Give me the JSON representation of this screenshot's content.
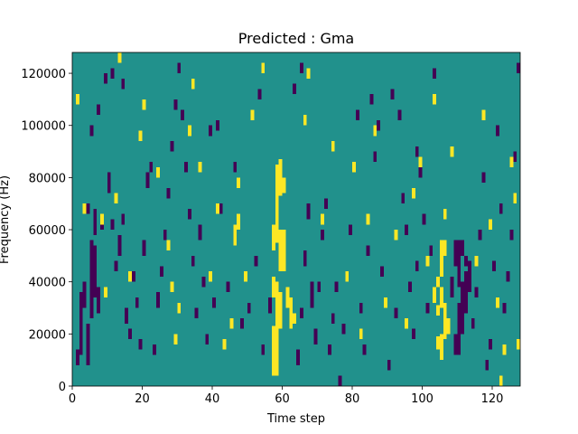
{
  "chart_data": {
    "type": "heatmap",
    "title": "Predicted : Gma",
    "xlabel": "Time step",
    "ylabel": "Frequency (Hz)",
    "xlim": [
      0,
      128
    ],
    "ylim": [
      0,
      128000
    ],
    "xticks": [
      0,
      20,
      40,
      60,
      80,
      100,
      120
    ],
    "xtick_labels": [
      "0",
      "20",
      "40",
      "60",
      "80",
      "100",
      "120"
    ],
    "yticks": [
      0,
      20000,
      40000,
      60000,
      80000,
      100000,
      120000
    ],
    "ytick_labels": [
      "0",
      "20000",
      "40000",
      "60000",
      "80000",
      "100000",
      "120000"
    ],
    "n_time_steps": 128,
    "n_freq_bins": 128,
    "bin_hz": 1000,
    "colormap": "viridis",
    "levels": {
      "low": -1,
      "background": 0,
      "high": 1
    },
    "colors": {
      "low": "#440154",
      "background": "#21918c",
      "high": "#fde725"
    },
    "background_value": 0,
    "cells": [
      [
        57,
        4,
        19,
        1
      ],
      [
        58,
        4,
        19,
        1
      ],
      [
        57,
        34,
        8,
        1
      ],
      [
        58,
        34,
        6,
        1
      ],
      [
        59,
        44,
        16,
        1
      ],
      [
        60,
        44,
        16,
        1
      ],
      [
        58,
        22,
        18,
        1
      ],
      [
        59,
        22,
        14,
        1
      ],
      [
        61,
        30,
        8,
        1
      ],
      [
        62,
        22,
        12,
        1
      ],
      [
        63,
        24,
        4,
        1
      ],
      [
        57,
        52,
        10,
        1
      ],
      [
        58,
        55,
        30,
        1
      ],
      [
        59,
        73,
        14,
        1
      ],
      [
        60,
        74,
        6,
        1
      ],
      [
        46,
        54,
        8,
        1
      ],
      [
        47,
        60,
        6,
        1
      ],
      [
        104,
        14,
        5,
        1
      ],
      [
        105,
        10,
        10,
        1
      ],
      [
        106,
        18,
        14,
        1
      ],
      [
        105,
        30,
        8,
        1
      ],
      [
        104,
        38,
        4,
        1
      ],
      [
        105,
        42,
        14,
        1
      ],
      [
        106,
        50,
        6,
        1
      ],
      [
        104,
        27,
        4,
        1
      ],
      [
        103,
        32,
        6,
        1
      ],
      [
        107,
        20,
        6,
        1
      ],
      [
        109,
        12,
        8,
        -1
      ],
      [
        110,
        12,
        20,
        -1
      ],
      [
        111,
        20,
        20,
        -1
      ],
      [
        112,
        28,
        16,
        -1
      ],
      [
        113,
        36,
        12,
        -1
      ],
      [
        110,
        38,
        18,
        -1
      ],
      [
        109,
        46,
        10,
        -1
      ],
      [
        111,
        50,
        6,
        -1
      ],
      [
        108,
        34,
        8,
        -1
      ],
      [
        112,
        46,
        4,
        -1
      ],
      [
        5,
        26,
        30,
        -1
      ],
      [
        6,
        34,
        20,
        -1
      ],
      [
        7,
        28,
        10,
        -1
      ],
      [
        4,
        8,
        16,
        -1
      ],
      [
        3,
        30,
        10,
        -1
      ],
      [
        2,
        12,
        24,
        -1
      ],
      [
        1,
        8,
        6,
        -1
      ],
      [
        6,
        58,
        10,
        -1
      ],
      [
        4,
        66,
        4,
        -1
      ],
      [
        8,
        60,
        6,
        -1
      ],
      [
        10,
        74,
        8,
        -1
      ],
      [
        11,
        60,
        4,
        -1
      ],
      [
        12,
        44,
        4,
        -1
      ],
      [
        13,
        50,
        8,
        -1
      ],
      [
        14,
        62,
        4,
        -1
      ],
      [
        15,
        24,
        6,
        -1
      ],
      [
        16,
        18,
        4,
        -1
      ],
      [
        17,
        40,
        4,
        -1
      ],
      [
        18,
        30,
        4,
        -1
      ],
      [
        19,
        14,
        4,
        -1
      ],
      [
        20,
        50,
        6,
        -1
      ],
      [
        21,
        76,
        6,
        -1
      ],
      [
        22,
        82,
        4,
        -1
      ],
      [
        23,
        12,
        4,
        -1
      ],
      [
        24,
        30,
        6,
        -1
      ],
      [
        25,
        42,
        4,
        -1
      ],
      [
        26,
        56,
        4,
        -1
      ],
      [
        27,
        72,
        4,
        -1
      ],
      [
        28,
        90,
        4,
        -1
      ],
      [
        30,
        120,
        4,
        -1
      ],
      [
        31,
        102,
        4,
        -1
      ],
      [
        32,
        82,
        4,
        -1
      ],
      [
        33,
        64,
        4,
        -1
      ],
      [
        34,
        46,
        4,
        -1
      ],
      [
        35,
        26,
        4,
        -1
      ],
      [
        36,
        56,
        6,
        -1
      ],
      [
        37,
        38,
        4,
        -1
      ],
      [
        38,
        16,
        4,
        -1
      ],
      [
        39,
        96,
        4,
        -1
      ],
      [
        40,
        30,
        4,
        -1
      ],
      [
        42,
        66,
        4,
        -1
      ],
      [
        44,
        36,
        4,
        -1
      ],
      [
        46,
        82,
        4,
        -1
      ],
      [
        48,
        22,
        4,
        -1
      ],
      [
        50,
        28,
        4,
        -1
      ],
      [
        52,
        46,
        4,
        -1
      ],
      [
        54,
        12,
        4,
        -1
      ],
      [
        56,
        28,
        6,
        -1
      ],
      [
        64,
        8,
        6,
        -1
      ],
      [
        65,
        26,
        4,
        -1
      ],
      [
        66,
        46,
        6,
        -1
      ],
      [
        67,
        64,
        6,
        -1
      ],
      [
        68,
        30,
        10,
        -1
      ],
      [
        69,
        16,
        6,
        -1
      ],
      [
        70,
        36,
        4,
        -1
      ],
      [
        71,
        56,
        4,
        -1
      ],
      [
        72,
        68,
        4,
        -1
      ],
      [
        73,
        12,
        4,
        -1
      ],
      [
        74,
        24,
        4,
        -1
      ],
      [
        75,
        36,
        4,
        -1
      ],
      [
        76,
        0,
        4,
        -1
      ],
      [
        77,
        20,
        4,
        -1
      ],
      [
        78,
        40,
        4,
        -1
      ],
      [
        79,
        58,
        4,
        -1
      ],
      [
        80,
        82,
        4,
        -1
      ],
      [
        81,
        102,
        4,
        -1
      ],
      [
        82,
        28,
        4,
        -1
      ],
      [
        83,
        12,
        4,
        -1
      ],
      [
        84,
        50,
        4,
        -1
      ],
      [
        86,
        86,
        4,
        -1
      ],
      [
        88,
        42,
        4,
        -1
      ],
      [
        90,
        6,
        4,
        -1
      ],
      [
        92,
        26,
        4,
        -1
      ],
      [
        94,
        70,
        4,
        -1
      ],
      [
        95,
        58,
        4,
        -1
      ],
      [
        96,
        36,
        4,
        -1
      ],
      [
        97,
        18,
        4,
        -1
      ],
      [
        98,
        44,
        4,
        -1
      ],
      [
        99,
        80,
        4,
        -1
      ],
      [
        100,
        62,
        4,
        -1
      ],
      [
        101,
        28,
        4,
        -1
      ],
      [
        102,
        50,
        4,
        -1
      ],
      [
        114,
        22,
        4,
        -1
      ],
      [
        115,
        34,
        4,
        -1
      ],
      [
        116,
        56,
        4,
        -1
      ],
      [
        117,
        78,
        4,
        -1
      ],
      [
        118,
        6,
        4,
        -1
      ],
      [
        119,
        14,
        4,
        -1
      ],
      [
        120,
        44,
        4,
        -1
      ],
      [
        121,
        96,
        4,
        -1
      ],
      [
        122,
        66,
        4,
        -1
      ],
      [
        123,
        28,
        4,
        -1
      ],
      [
        124,
        40,
        4,
        -1
      ],
      [
        125,
        56,
        4,
        -1
      ],
      [
        126,
        86,
        4,
        -1
      ],
      [
        127,
        120,
        4,
        -1
      ],
      [
        5,
        96,
        4,
        -1
      ],
      [
        7,
        104,
        4,
        -1
      ],
      [
        9,
        116,
        4,
        -1
      ],
      [
        11,
        118,
        4,
        -1
      ],
      [
        14,
        114,
        4,
        -1
      ],
      [
        29,
        106,
        4,
        -1
      ],
      [
        41,
        98,
        4,
        -1
      ],
      [
        53,
        110,
        4,
        -1
      ],
      [
        63,
        112,
        4,
        -1
      ],
      [
        65,
        120,
        4,
        -1
      ],
      [
        85,
        108,
        4,
        -1
      ],
      [
        87,
        98,
        4,
        -1
      ],
      [
        91,
        110,
        4,
        -1
      ],
      [
        93,
        102,
        4,
        -1
      ],
      [
        98,
        88,
        4,
        -1
      ],
      [
        103,
        118,
        4,
        -1
      ],
      [
        1,
        108,
        4,
        1
      ],
      [
        3,
        66,
        4,
        1
      ],
      [
        8,
        62,
        4,
        1
      ],
      [
        9,
        34,
        4,
        1
      ],
      [
        12,
        70,
        4,
        1
      ],
      [
        13,
        124,
        4,
        1
      ],
      [
        16,
        40,
        4,
        1
      ],
      [
        19,
        94,
        4,
        1
      ],
      [
        20,
        106,
        4,
        1
      ],
      [
        24,
        80,
        4,
        1
      ],
      [
        27,
        52,
        4,
        1
      ],
      [
        28,
        36,
        4,
        1
      ],
      [
        29,
        16,
        4,
        1
      ],
      [
        30,
        28,
        4,
        1
      ],
      [
        33,
        96,
        4,
        1
      ],
      [
        34,
        114,
        4,
        1
      ],
      [
        36,
        82,
        4,
        1
      ],
      [
        39,
        40,
        4,
        1
      ],
      [
        41,
        66,
        4,
        1
      ],
      [
        43,
        14,
        4,
        1
      ],
      [
        45,
        22,
        4,
        1
      ],
      [
        47,
        76,
        4,
        1
      ],
      [
        49,
        40,
        4,
        1
      ],
      [
        51,
        102,
        4,
        1
      ],
      [
        54,
        120,
        4,
        1
      ],
      [
        66,
        100,
        4,
        1
      ],
      [
        67,
        118,
        4,
        1
      ],
      [
        71,
        62,
        4,
        1
      ],
      [
        74,
        90,
        4,
        1
      ],
      [
        78,
        40,
        4,
        1
      ],
      [
        80,
        82,
        4,
        1
      ],
      [
        82,
        18,
        4,
        1
      ],
      [
        84,
        62,
        4,
        1
      ],
      [
        86,
        96,
        4,
        1
      ],
      [
        89,
        30,
        4,
        1
      ],
      [
        92,
        56,
        4,
        1
      ],
      [
        95,
        22,
        4,
        1
      ],
      [
        97,
        72,
        4,
        1
      ],
      [
        99,
        84,
        4,
        1
      ],
      [
        101,
        46,
        4,
        1
      ],
      [
        103,
        108,
        4,
        1
      ],
      [
        106,
        64,
        4,
        1
      ],
      [
        108,
        88,
        4,
        1
      ],
      [
        115,
        46,
        4,
        1
      ],
      [
        117,
        102,
        4,
        1
      ],
      [
        119,
        60,
        4,
        1
      ],
      [
        121,
        30,
        4,
        1
      ],
      [
        123,
        12,
        4,
        1
      ],
      [
        125,
        84,
        4,
        1
      ],
      [
        126,
        70,
        4,
        1
      ],
      [
        127,
        14,
        4,
        1
      ],
      [
        122,
        0,
        4,
        1
      ]
    ]
  }
}
